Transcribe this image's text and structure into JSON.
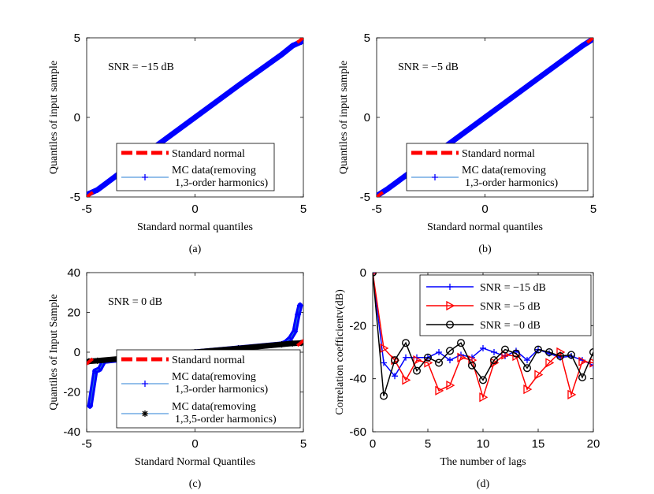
{
  "chart_data": [
    {
      "id": "a",
      "type": "scatter",
      "caption": "(a)",
      "annotation": "SNR = −15 dB",
      "xlabel": "Standard normal quantiles",
      "ylabel": "Quantiles of input sample",
      "xlim": [
        -5,
        5
      ],
      "ylim": [
        -5,
        5
      ],
      "xticks": [
        "-5",
        "0",
        "5"
      ],
      "yticks": [
        "-5",
        "0",
        "5"
      ],
      "legend_position": "bottom-right",
      "series": [
        {
          "name": "Standard normal",
          "style": "dashed-red",
          "color": "#ff0000",
          "x": [
            -4.9,
            4.9
          ],
          "y": [
            -4.9,
            4.9
          ]
        },
        {
          "name": "MC data(removing",
          "name2": "1,3-order harmonics)",
          "style": "plus-blue",
          "color": "#0000ff",
          "x": [
            -4.9,
            -4.5,
            -2.0,
            0.0,
            2.0,
            4.0,
            4.5,
            4.9
          ],
          "y": [
            -4.8,
            -4.55,
            -2.0,
            0.0,
            2.0,
            3.95,
            4.5,
            4.75
          ]
        }
      ]
    },
    {
      "id": "b",
      "type": "scatter",
      "caption": "(b)",
      "annotation": "SNR = −5 dB",
      "xlabel": "Standard normal quantiles",
      "ylabel": "Quantiles of input sample",
      "xlim": [
        -5,
        5
      ],
      "ylim": [
        -5,
        5
      ],
      "xticks": [
        "-5",
        "0",
        "5"
      ],
      "yticks": [
        "-5",
        "0",
        "5"
      ],
      "legend_position": "bottom-right",
      "series": [
        {
          "name": "Standard normal",
          "style": "dashed-red",
          "color": "#ff0000",
          "x": [
            -4.9,
            4.9
          ],
          "y": [
            -4.9,
            4.9
          ]
        },
        {
          "name": "MC data(removing",
          "name2": "1,3-order harmonics)",
          "style": "plus-blue",
          "color": "#0000ff",
          "x": [
            -4.9,
            -4.5,
            -2.0,
            0.0,
            2.0,
            4.0,
            4.5,
            4.9
          ],
          "y": [
            -4.85,
            -4.5,
            -2.0,
            0.0,
            2.0,
            4.0,
            4.5,
            4.85
          ]
        }
      ]
    },
    {
      "id": "c",
      "type": "scatter",
      "caption": "(c)",
      "annotation": "SNR = 0 dB",
      "xlabel": "Standard Normal Quantiles",
      "ylabel": "Quantiles of Input Sample",
      "xlim": [
        -5,
        5
      ],
      "ylim": [
        -40,
        40
      ],
      "xticks": [
        "-5",
        "0",
        "5"
      ],
      "yticks": [
        "-40",
        "-20",
        "0",
        "20",
        "40"
      ],
      "legend_position": "bottom-right",
      "series": [
        {
          "name": "Standard normal",
          "style": "dashed-red",
          "color": "#ff0000",
          "x": [
            -4.9,
            4.9
          ],
          "y": [
            -4.9,
            4.9
          ]
        },
        {
          "name": "MC data(removing",
          "name2": "1,3-order harmonics)",
          "style": "plus-blue",
          "color": "#0000ff",
          "x": [
            -4.85,
            -4.6,
            -4.4,
            -4.2,
            -2.0,
            0.0,
            2.0,
            4.0,
            4.2,
            4.4,
            4.6,
            4.75,
            4.85
          ],
          "y": [
            -27,
            -9.5,
            -8.5,
            -4.5,
            -2.0,
            0.0,
            2.0,
            4.0,
            5.0,
            7.0,
            10.5,
            19,
            23.5
          ]
        },
        {
          "name": "MC data(removing",
          "name2": "1,3,5-order harmonics)",
          "style": "star-black",
          "color": "#000000",
          "x": [
            -4.9,
            -4.5,
            -2.0,
            0.0,
            2.0,
            4.0,
            4.5,
            4.9
          ],
          "y": [
            -4.6,
            -4.3,
            -1.9,
            0.0,
            1.9,
            3.9,
            4.4,
            4.6
          ]
        }
      ]
    },
    {
      "id": "d",
      "type": "line",
      "caption": "(d)",
      "xlabel": "The number of lags",
      "ylabel": "Correlation coefficientv(dB)",
      "xlim": [
        0,
        20
      ],
      "ylim": [
        -60,
        0
      ],
      "xticks": [
        "0",
        "5",
        "10",
        "15",
        "20"
      ],
      "yticks": [
        "-60",
        "-40",
        "-20",
        "0"
      ],
      "legend_position": "top-right",
      "x": [
        0,
        1,
        2,
        3,
        4,
        5,
        6,
        7,
        8,
        9,
        10,
        11,
        12,
        13,
        14,
        15,
        16,
        17,
        18,
        19,
        20
      ],
      "series": [
        {
          "name": "SNR = −15 dB",
          "marker": "plus",
          "color": "#0000ff",
          "values": [
            0,
            -34,
            -39,
            -32,
            -32,
            -32,
            -30,
            -33,
            -31,
            -32,
            -28.5,
            -30,
            -31.5,
            -29.5,
            -33,
            -29,
            -30.5,
            -32,
            -31.5,
            -33,
            -35
          ]
        },
        {
          "name": "SNR = −5 dB",
          "marker": "triangle",
          "color": "#ff0000",
          "values": [
            0,
            -28.5,
            -33,
            -40.5,
            -33,
            -34,
            -44.5,
            -42.5,
            -32,
            -33,
            -47,
            -34,
            -31,
            -31.5,
            -44,
            -38.5,
            -34,
            -30,
            -46,
            -33.5,
            -34
          ]
        },
        {
          "name": "SNR = −0 dB",
          "marker": "circle",
          "color": "#000000",
          "values": [
            0,
            -46.5,
            -33,
            -26.5,
            -37,
            -32,
            -34,
            -29.5,
            -26.5,
            -35,
            -40.5,
            -33,
            -29,
            -30.5,
            -36,
            -29,
            -30,
            -31.5,
            -31,
            -39.5,
            -30
          ]
        }
      ]
    }
  ]
}
